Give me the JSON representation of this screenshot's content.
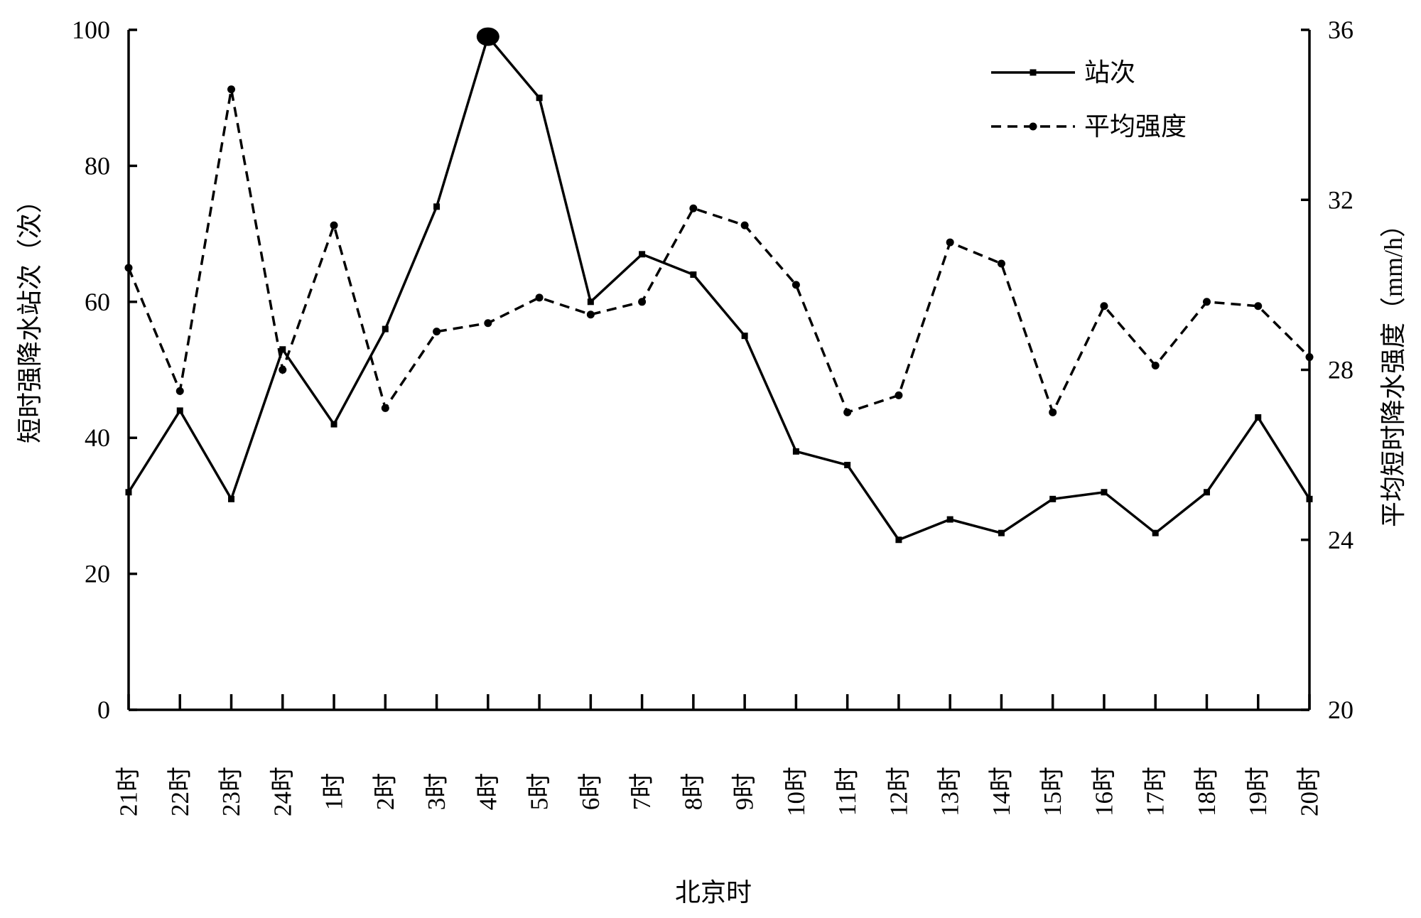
{
  "chart_data": {
    "type": "line",
    "categories": [
      "21时",
      "22时",
      "23时",
      "24时",
      "1时",
      "2时",
      "3时",
      "4时",
      "5时",
      "6时",
      "7时",
      "8时",
      "9时",
      "10时",
      "11时",
      "12时",
      "13时",
      "14时",
      "15时",
      "16时",
      "17时",
      "18时",
      "19时",
      "20时"
    ],
    "xlabel": "北京时",
    "ylabel": "短时强降水站次（次）",
    "y2label": "平均短时降水强度（mm/h）",
    "ylim": [
      0,
      100
    ],
    "y2lim": [
      20,
      36
    ],
    "yticks": [
      0,
      20,
      40,
      60,
      80,
      100
    ],
    "y2ticks": [
      20,
      24,
      28,
      32,
      36
    ],
    "grid": false,
    "legend_position": "top-right",
    "series": [
      {
        "name": "站次",
        "axis": "left",
        "line_style": "solid",
        "marker": "square",
        "color": "#000000",
        "values": [
          32,
          44,
          31,
          53,
          42,
          56,
          74,
          99,
          90,
          60,
          67,
          64,
          55,
          38,
          36,
          25,
          28,
          26,
          31,
          32,
          26,
          32,
          43,
          31
        ]
      },
      {
        "name": "平均强度",
        "axis": "right",
        "line_style": "dashed",
        "marker": "circle",
        "color": "#000000",
        "values": [
          30.4,
          27.5,
          34.6,
          28.0,
          31.4,
          27.1,
          28.9,
          29.1,
          29.7,
          29.3,
          29.6,
          31.8,
          31.4,
          30.0,
          27.0,
          27.4,
          31.0,
          30.5,
          27.0,
          29.5,
          28.1,
          29.6,
          29.5,
          28.3
        ]
      }
    ]
  }
}
